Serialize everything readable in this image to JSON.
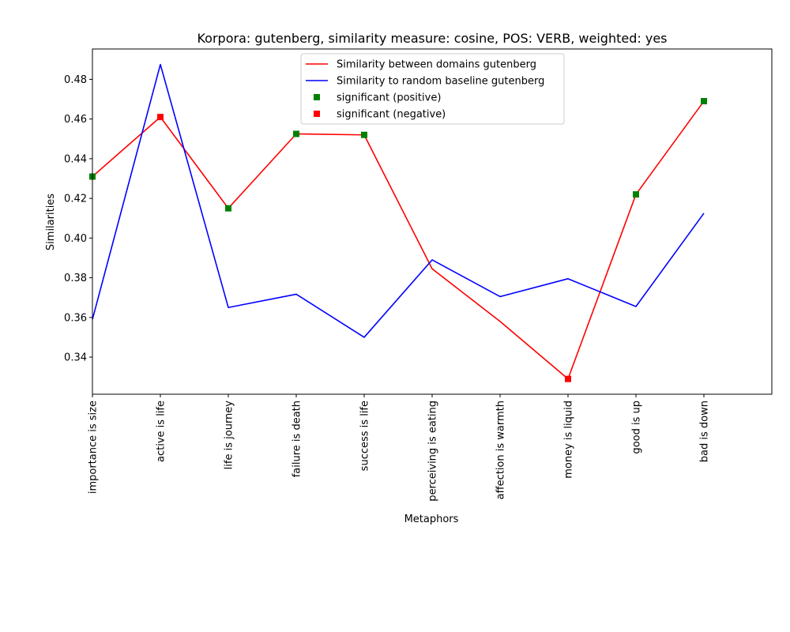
{
  "chart_data": {
    "type": "line",
    "title": "Korpora: gutenberg, similarity measure: cosine, POS: VERB, weighted: yes",
    "xlabel": "Metaphors",
    "ylabel": "Similarities",
    "categories": [
      "importance is size",
      "active is life",
      "life is journey",
      "failure is death",
      "success is life",
      "perceiving is eating",
      "affection is warmth",
      "money is liquid",
      "good is up",
      "bad is down"
    ],
    "xlim": [
      0,
      10
    ],
    "ylim": [
      0.3213,
      0.4953
    ],
    "yticks": [
      "0.34",
      "0.36",
      "0.38",
      "0.40",
      "0.42",
      "0.44",
      "0.46",
      "0.48"
    ],
    "legend_position": "upper center",
    "series": [
      {
        "name": "Similarity between domains gutenberg",
        "color": "#ff0000",
        "values": [
          0.431,
          0.461,
          0.415,
          0.4525,
          0.452,
          0.3845,
          0.358,
          0.329,
          0.422,
          0.469
        ]
      },
      {
        "name": "Similarity to random baseline gutenberg",
        "color": "#0000ff",
        "values": [
          0.359,
          0.4875,
          0.365,
          0.3717,
          0.35,
          0.389,
          0.3705,
          0.3795,
          0.3655,
          0.4125
        ]
      }
    ],
    "markers": [
      {
        "name": "significant (positive)",
        "color": "#008000",
        "points": [
          {
            "category": "importance is size",
            "value": 0.431
          },
          {
            "category": "life is journey",
            "value": 0.415
          },
          {
            "category": "failure is death",
            "value": 0.4525
          },
          {
            "category": "success is life",
            "value": 0.452
          },
          {
            "category": "good is up",
            "value": 0.422
          },
          {
            "category": "bad is down",
            "value": 0.469
          }
        ]
      },
      {
        "name": "significant (negative)",
        "color": "#ff0000",
        "points": [
          {
            "category": "active is life",
            "value": 0.461
          },
          {
            "category": "money is liquid",
            "value": 0.329
          }
        ]
      }
    ]
  }
}
